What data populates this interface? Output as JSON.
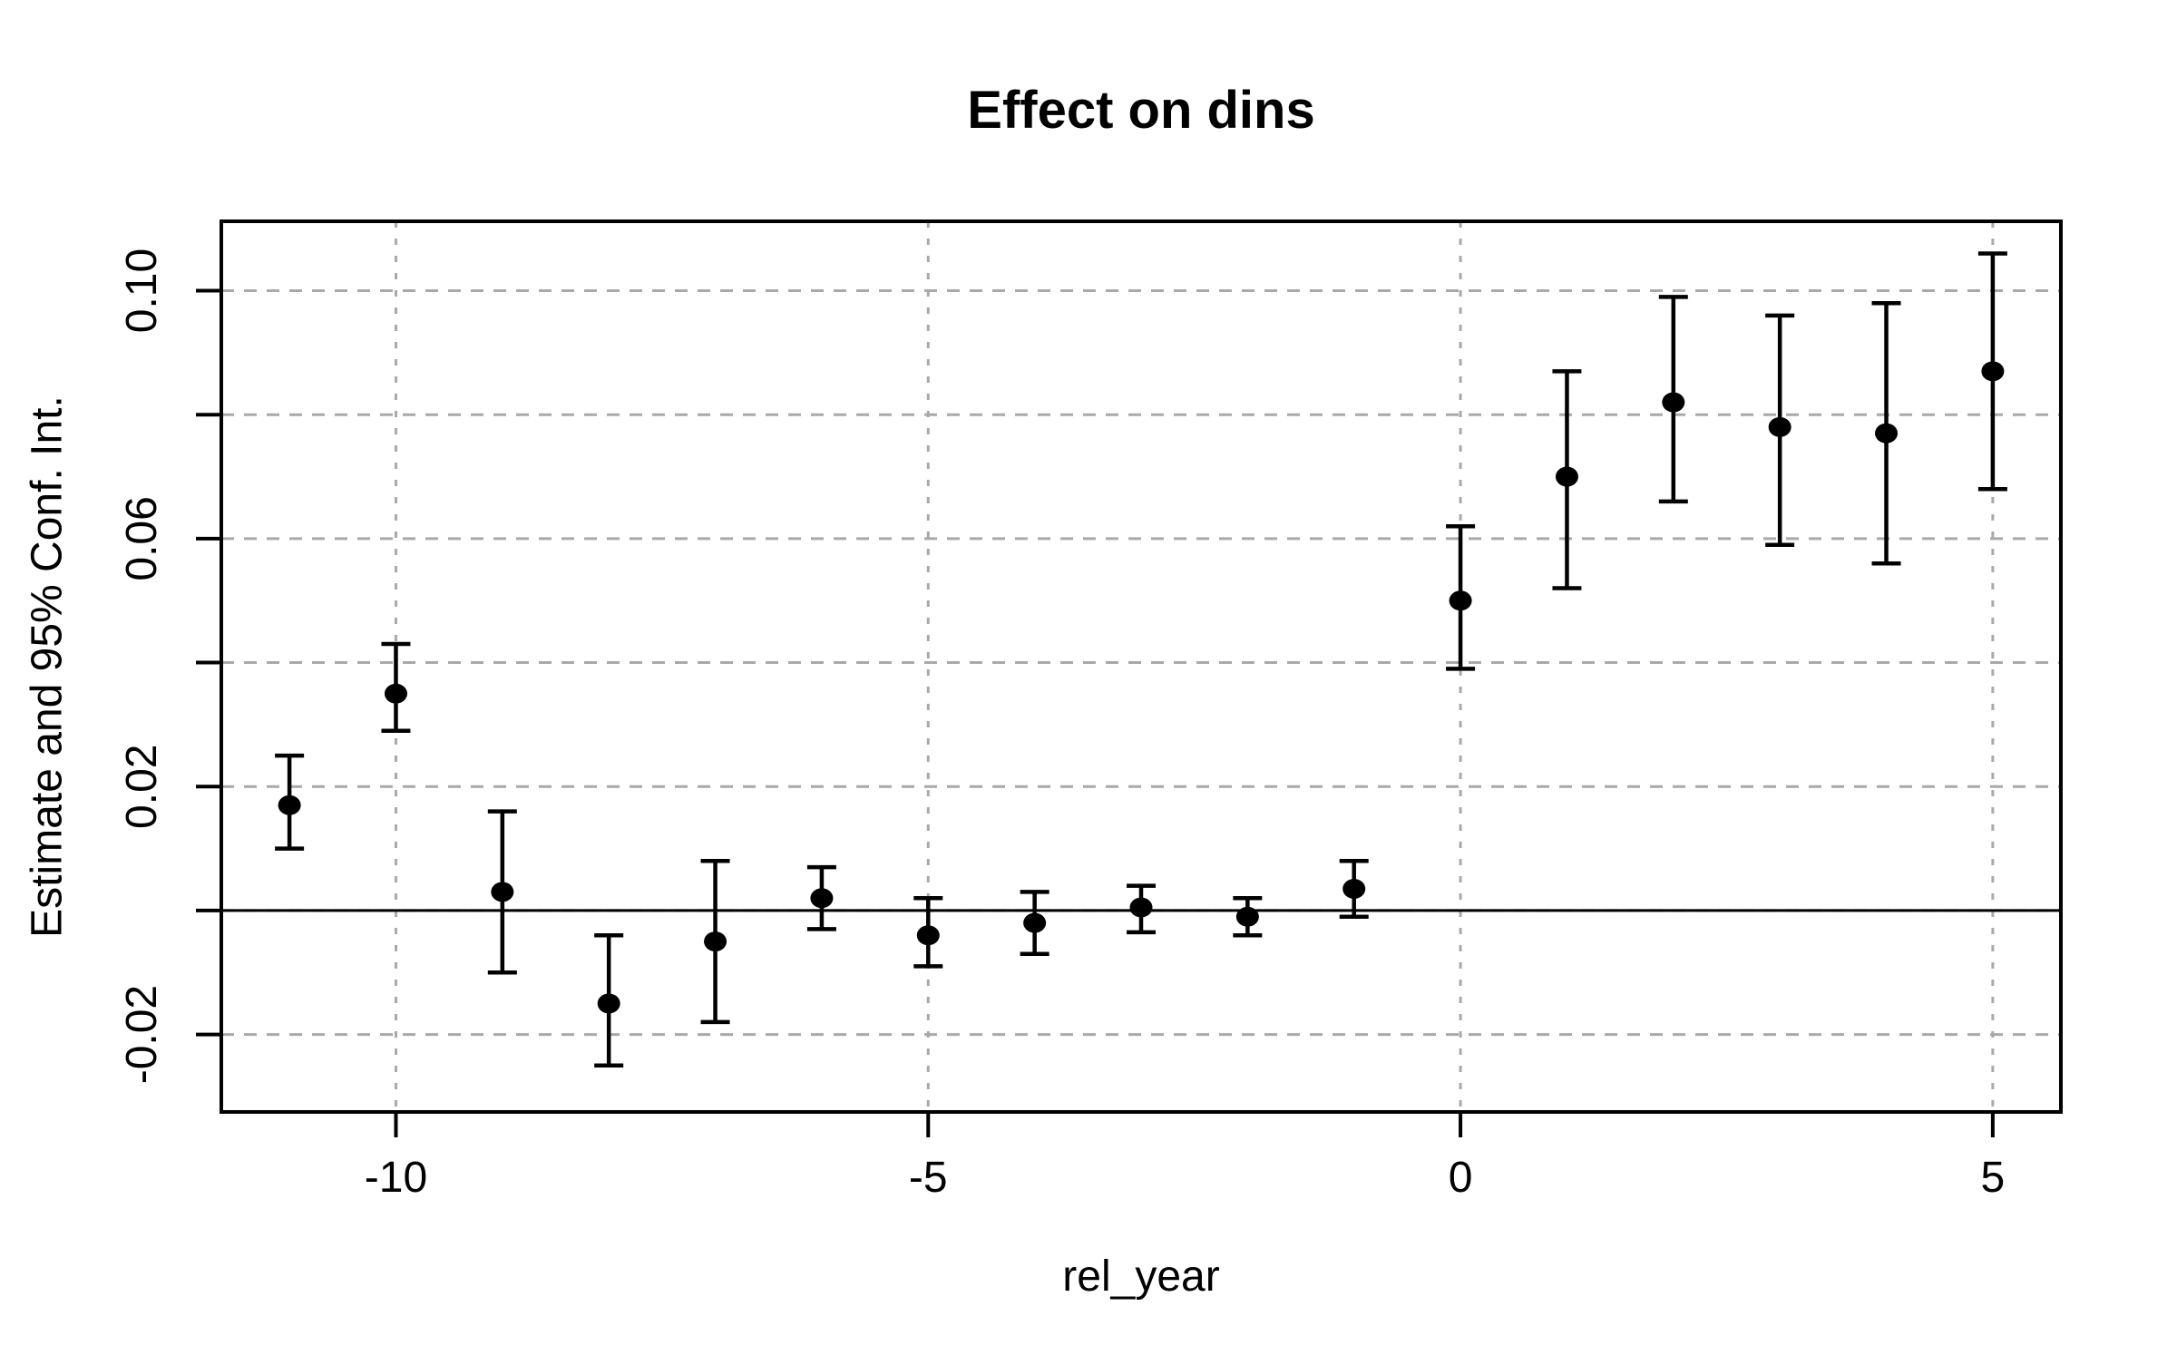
{
  "chart_data": {
    "type": "scatter",
    "subtype": "errorbar-event-study",
    "title": "Effect on dins",
    "xlabel": "rel_year",
    "ylabel": "Estimate and 95% Conf. Int.",
    "x": [
      -11,
      -10,
      -9,
      -8,
      -7,
      -6,
      -5,
      -4,
      -3,
      -2,
      -1,
      0,
      1,
      2,
      3,
      4,
      5
    ],
    "series": [
      {
        "name": "estimate",
        "values": [
          0.017,
          0.035,
          0.003,
          -0.015,
          -0.005,
          0.002,
          -0.004,
          -0.002,
          0.0005,
          -0.001,
          0.0035,
          0.05,
          0.07,
          0.082,
          0.078,
          0.077,
          0.087
        ]
      },
      {
        "name": "ci_lower",
        "values": [
          0.01,
          0.029,
          -0.01,
          -0.025,
          -0.018,
          -0.003,
          -0.009,
          -0.007,
          -0.0035,
          -0.004,
          -0.001,
          0.039,
          0.052,
          0.066,
          0.059,
          0.056,
          0.068
        ]
      },
      {
        "name": "ci_upper",
        "values": [
          0.025,
          0.043,
          0.016,
          -0.004,
          0.008,
          0.007,
          0.002,
          0.003,
          0.004,
          0.002,
          0.008,
          0.062,
          0.087,
          0.099,
          0.096,
          0.098,
          0.106
        ]
      }
    ],
    "xlim": [
      -11.64,
      5.64
    ],
    "ylim": [
      -0.0325,
      0.1112
    ],
    "xticks": {
      "values": [
        -10,
        -5,
        0,
        5
      ],
      "labels": [
        "-10",
        "-5",
        "0",
        "5"
      ]
    },
    "yticks": {
      "values": [
        -0.02,
        0,
        0.02,
        0.04,
        0.06,
        0.08,
        0.1
      ],
      "labels": [
        "-0.02",
        "",
        "0.02",
        "",
        "0.06",
        "",
        "0.10"
      ]
    },
    "reference_line_y": 0,
    "grid": {
      "show": true,
      "style": "dashed",
      "color": "#a9a9a9"
    },
    "marker": {
      "shape": "filled-circle",
      "color": "#000000"
    },
    "axis_color": "#000000",
    "background_color": "#ffffff",
    "legend": null
  }
}
